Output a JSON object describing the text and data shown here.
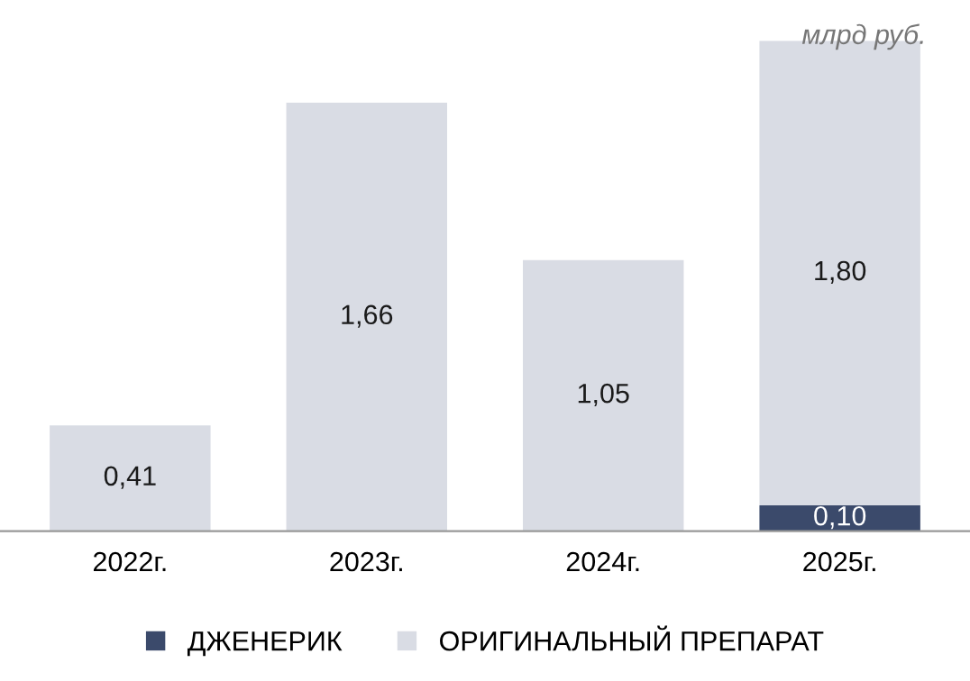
{
  "chart_data": {
    "type": "bar",
    "stacked": true,
    "categories": [
      "2022г.",
      "2023г.",
      "2024г.",
      "2025г."
    ],
    "series": [
      {
        "name": "ДЖЕНЕРИК",
        "color": "#3b4a6b",
        "values": [
          null,
          null,
          null,
          0.1
        ],
        "value_labels": [
          null,
          null,
          null,
          "0,10"
        ]
      },
      {
        "name": "ОРИГИНАЛЬНЫЙ ПРЕПАРАТ",
        "color": "#d9dce4",
        "values": [
          0.41,
          1.66,
          1.05,
          1.8
        ],
        "value_labels": [
          "0,41",
          "1,66",
          "1,05",
          "1,80"
        ]
      }
    ],
    "annotations": [
      "млрд руб."
    ],
    "legend": "bottom",
    "grid": false
  }
}
